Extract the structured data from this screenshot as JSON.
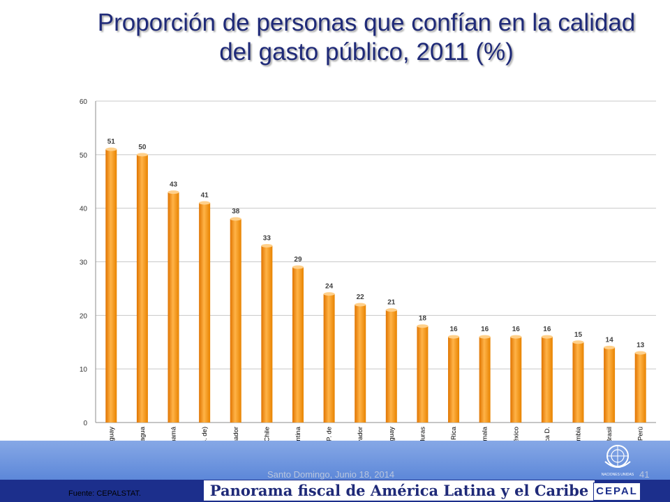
{
  "slide": {
    "title_line1": "Proporción de personas que confían en la calidad",
    "title_line2": "del gasto público, 2011 (%)",
    "footer_caption": "Panorama fiscal de América Latina y el Caribe",
    "footer_date": "Santo Domingo, Junio 18, 2014",
    "page_number": "41",
    "source": "Fuente: CEPALSTAT.",
    "un_label": "NACIONES UNIDAS",
    "cepal_logo": "CEPAL"
  },
  "colors": {
    "title": "#1f2a78",
    "bar": "#f7941d",
    "bar_light": "#ffd08a",
    "band": "#6f97e0",
    "footer_bar": "#1c2f8c"
  },
  "chart_data": {
    "type": "bar",
    "title": "",
    "xlabel": "",
    "ylabel": "",
    "ylim": [
      0,
      60
    ],
    "yticks": [
      0,
      10,
      20,
      30,
      40,
      50,
      60
    ],
    "grid": true,
    "categories": [
      "Uruguay",
      "Nicaragua",
      "Panamá",
      "Venezuela (R.B. de)",
      "Ecuador",
      "Chile",
      "Argentina",
      "Bolivia (E.P. de",
      "El Salvador",
      "Paraguay",
      "Honduras",
      "Costa Rica",
      "Guatemala",
      "México",
      "República D.",
      "Colombia",
      "Brasil",
      "Perú"
    ],
    "values": [
      51,
      50,
      43,
      41,
      38,
      33,
      29,
      24,
      22,
      21,
      18,
      16,
      16,
      16,
      16,
      15,
      14,
      13
    ]
  }
}
